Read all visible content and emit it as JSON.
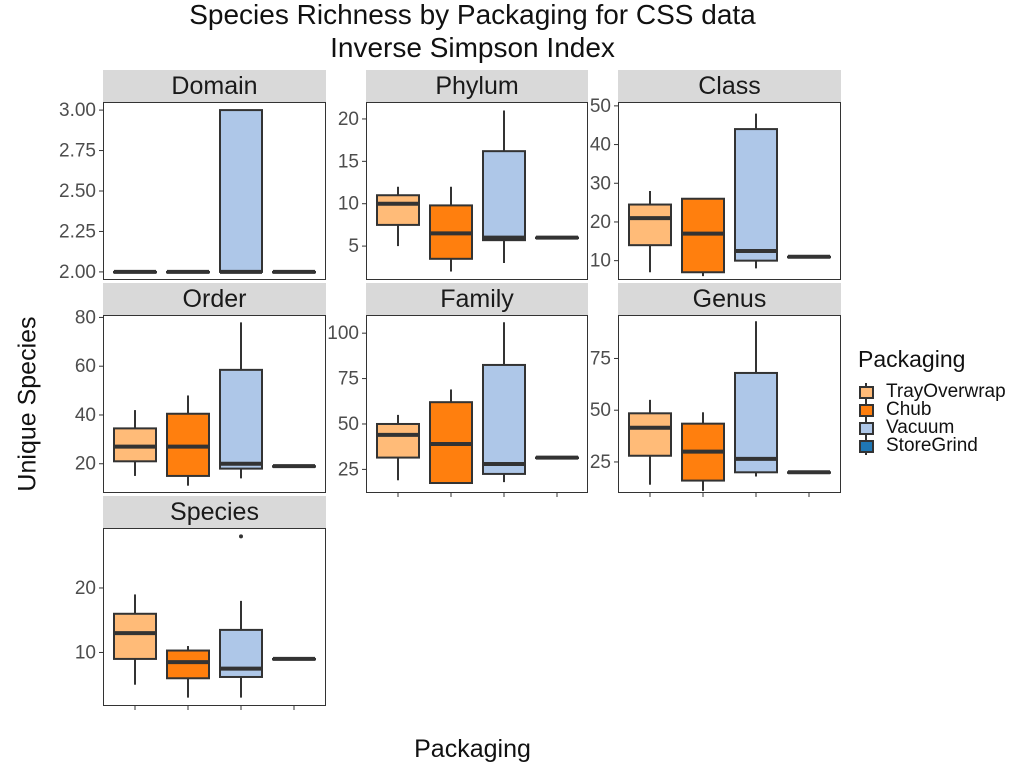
{
  "title": "Species Richness by Packaging for CSS data",
  "subtitle": "Inverse Simpson Index",
  "xlabel": "Packaging",
  "ylabel": "Unique Species",
  "legend": {
    "title": "Packaging",
    "items": [
      {
        "label": "TrayOverwrap",
        "color": "#ffbb78"
      },
      {
        "label": "Chub",
        "color": "#ff7f0e"
      },
      {
        "label": "Vacuum",
        "color": "#aec7e8"
      },
      {
        "label": "StoreGrind",
        "color": "#1f77b4"
      }
    ]
  },
  "colors": {
    "strip": "#d9d9d9",
    "outline": "#333333"
  },
  "chart_data": [
    {
      "type": "boxplot",
      "facet": "Domain",
      "ylim": [
        1.95,
        3.05
      ],
      "ticks": [
        2.0,
        2.25,
        2.5,
        2.75,
        3.0
      ],
      "tick_labels": [
        "2.00",
        "2.25",
        "2.50",
        "2.75",
        "3.00"
      ],
      "boxes": [
        {
          "group": "TrayOverwrap",
          "min": 2,
          "q1": 2,
          "median": 2,
          "q3": 2,
          "max": 2,
          "outliers": []
        },
        {
          "group": "Chub",
          "min": 2,
          "q1": 2,
          "median": 2,
          "q3": 2,
          "max": 2,
          "outliers": []
        },
        {
          "group": "Vacuum",
          "min": 2,
          "q1": 2,
          "median": 2,
          "q3": 3,
          "max": 3,
          "outliers": []
        },
        {
          "group": "StoreGrind",
          "min": 2,
          "q1": 2,
          "median": 2,
          "q3": 2,
          "max": 2,
          "outliers": []
        }
      ]
    },
    {
      "type": "boxplot",
      "facet": "Phylum",
      "ylim": [
        1.0,
        22.0
      ],
      "ticks": [
        5,
        10,
        15,
        20
      ],
      "tick_labels": [
        "5",
        "10",
        "15",
        "20"
      ],
      "boxes": [
        {
          "group": "TrayOverwrap",
          "min": 5,
          "q1": 7.5,
          "median": 10,
          "q3": 11,
          "max": 12,
          "outliers": []
        },
        {
          "group": "Chub",
          "min": 2,
          "q1": 3.5,
          "median": 6.5,
          "q3": 9.8,
          "max": 12,
          "outliers": []
        },
        {
          "group": "Vacuum",
          "min": 3,
          "q1": 5.7,
          "median": 6,
          "q3": 16.2,
          "max": 21,
          "outliers": []
        },
        {
          "group": "StoreGrind",
          "min": 6,
          "q1": 6,
          "median": 6,
          "q3": 6,
          "max": 6,
          "outliers": []
        }
      ]
    },
    {
      "type": "boxplot",
      "facet": "Class",
      "ylim": [
        5,
        51
      ],
      "ticks": [
        10,
        20,
        30,
        40,
        50
      ],
      "tick_labels": [
        "10",
        "20",
        "30",
        "40",
        "50"
      ],
      "boxes": [
        {
          "group": "TrayOverwrap",
          "min": 7,
          "q1": 14,
          "median": 21,
          "q3": 24.5,
          "max": 28,
          "outliers": []
        },
        {
          "group": "Chub",
          "min": 6,
          "q1": 7,
          "median": 17,
          "q3": 26,
          "max": 26,
          "outliers": []
        },
        {
          "group": "Vacuum",
          "min": 8,
          "q1": 10,
          "median": 12.5,
          "q3": 44,
          "max": 48,
          "outliers": []
        },
        {
          "group": "StoreGrind",
          "min": 11,
          "q1": 11,
          "median": 11,
          "q3": 11,
          "max": 11,
          "outliers": []
        }
      ]
    },
    {
      "type": "boxplot",
      "facet": "Order",
      "ylim": [
        8,
        81
      ],
      "ticks": [
        20,
        40,
        60,
        80
      ],
      "tick_labels": [
        "20",
        "40",
        "60",
        "80"
      ],
      "boxes": [
        {
          "group": "TrayOverwrap",
          "min": 15,
          "q1": 21,
          "median": 27,
          "q3": 34.5,
          "max": 42,
          "outliers": []
        },
        {
          "group": "Chub",
          "min": 11,
          "q1": 15,
          "median": 27,
          "q3": 40.5,
          "max": 48,
          "outliers": []
        },
        {
          "group": "Vacuum",
          "min": 14,
          "q1": 18,
          "median": 20,
          "q3": 58.5,
          "max": 78,
          "outliers": []
        },
        {
          "group": "StoreGrind",
          "min": 19,
          "q1": 19,
          "median": 19,
          "q3": 19,
          "max": 19,
          "outliers": []
        }
      ]
    },
    {
      "type": "boxplot",
      "facet": "Family",
      "ylim": [
        12,
        110
      ],
      "ticks": [
        25,
        50,
        75,
        100
      ],
      "tick_labels": [
        "25",
        "50",
        "75",
        "100"
      ],
      "boxes": [
        {
          "group": "TrayOverwrap",
          "min": 19,
          "q1": 31.5,
          "median": 44,
          "q3": 50,
          "max": 55,
          "outliers": []
        },
        {
          "group": "Chub",
          "min": 17,
          "q1": 17.5,
          "median": 39,
          "q3": 62,
          "max": 69,
          "outliers": []
        },
        {
          "group": "Vacuum",
          "min": 18,
          "q1": 22.5,
          "median": 28,
          "q3": 82.5,
          "max": 106,
          "outliers": []
        },
        {
          "group": "StoreGrind",
          "min": 31.5,
          "q1": 31.5,
          "median": 31.5,
          "q3": 31.5,
          "max": 31.5,
          "outliers": []
        }
      ]
    },
    {
      "type": "boxplot",
      "facet": "Genus",
      "ylim": [
        10,
        96
      ],
      "ticks": [
        25,
        50,
        75
      ],
      "tick_labels": [
        "25",
        "50",
        "75"
      ],
      "boxes": [
        {
          "group": "TrayOverwrap",
          "min": 14,
          "q1": 28,
          "median": 41.5,
          "q3": 48.5,
          "max": 55,
          "outliers": []
        },
        {
          "group": "Chub",
          "min": 11,
          "q1": 16,
          "median": 30,
          "q3": 43.5,
          "max": 49,
          "outliers": []
        },
        {
          "group": "Vacuum",
          "min": 18,
          "q1": 20,
          "median": 26.5,
          "q3": 68,
          "max": 93,
          "outliers": []
        },
        {
          "group": "StoreGrind",
          "min": 20,
          "q1": 20,
          "median": 20,
          "q3": 20,
          "max": 20,
          "outliers": []
        }
      ]
    },
    {
      "type": "boxplot",
      "facet": "Species",
      "ylim": [
        1.7,
        29.3
      ],
      "ticks": [
        10,
        20
      ],
      "tick_labels": [
        "10",
        "20"
      ],
      "boxes": [
        {
          "group": "TrayOverwrap",
          "min": 5,
          "q1": 9,
          "median": 13,
          "q3": 16,
          "max": 19,
          "outliers": []
        },
        {
          "group": "Chub",
          "min": 3,
          "q1": 6,
          "median": 8.5,
          "q3": 10.3,
          "max": 11,
          "outliers": []
        },
        {
          "group": "Vacuum",
          "min": 3,
          "q1": 6.2,
          "median": 7.5,
          "q3": 13.5,
          "max": 18,
          "outliers": [
            28
          ]
        },
        {
          "group": "StoreGrind",
          "min": 9,
          "q1": 9,
          "median": 9,
          "q3": 9,
          "max": 9,
          "outliers": []
        }
      ]
    }
  ]
}
